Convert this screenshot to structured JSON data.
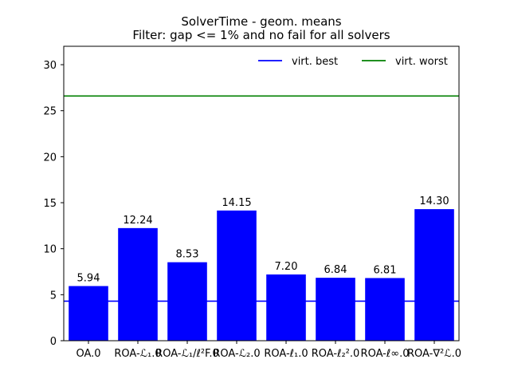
{
  "chart_data": {
    "type": "bar",
    "title": "SolverTime - geom. means",
    "subtitle": "Filter: gap <= 1% and no fail for all solvers",
    "categories": [
      "OA.0",
      "ROA-ℒ₁.0",
      "ROA-ℒ₁/ℓ²F.0",
      "ROA-ℒ₂.0",
      "ROA-ℓ₁.0",
      "ROA-ℓ₂².0",
      "ROA-ℓ∞.0",
      "ROA-∇²ℒ.0"
    ],
    "values": [
      5.94,
      12.24,
      8.53,
      14.15,
      7.2,
      6.84,
      6.81,
      14.3
    ],
    "value_labels": [
      "5.94",
      "12.24",
      "8.53",
      "14.15",
      "7.20",
      "6.84",
      "6.81",
      "14.30"
    ],
    "bar_color": "#0000ff",
    "ylim": [
      0,
      32
    ],
    "yticks": [
      0,
      5,
      10,
      15,
      20,
      25,
      30
    ],
    "xlabel": "",
    "ylabel": "",
    "reference_lines": [
      {
        "name": "virt. best",
        "value": 4.3,
        "color": "#0000ff"
      },
      {
        "name": "virt. worst",
        "value": 26.6,
        "color": "#008000"
      }
    ],
    "legend_position": "top-right",
    "grid": false
  }
}
